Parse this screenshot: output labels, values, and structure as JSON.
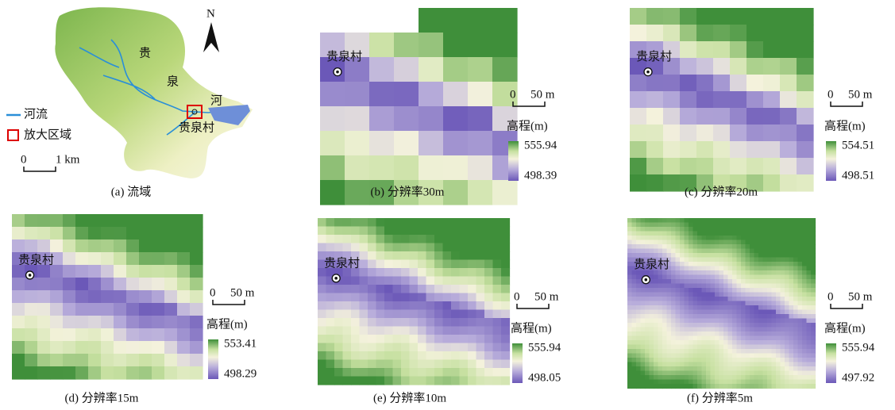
{
  "watershed": {
    "caption": "(a) 流域",
    "north": "N",
    "river_chars": [
      "贵",
      "泉",
      "河"
    ],
    "village": "贵泉村",
    "legend": [
      "河流",
      "放大区域"
    ],
    "scale": [
      "0",
      "1 km"
    ]
  },
  "zooms": [
    {
      "caption": "(b) 分辨率30m",
      "village": "贵泉村",
      "scale": [
        "0",
        "50 m"
      ],
      "legend_title": "高程(m)",
      "max": 555.94,
      "min": 498.39
    },
    {
      "caption": "(c) 分辨率20m",
      "village": "贵泉村",
      "scale": [
        "0",
        "50 m"
      ],
      "legend_title": "高程(m)",
      "max": 554.51,
      "min": 498.51
    },
    {
      "caption": "(d) 分辨率15m",
      "village": "贵泉村",
      "scale": [
        "0",
        "50 m"
      ],
      "legend_title": "高程(m)",
      "max": 553.41,
      "min": 498.29
    },
    {
      "caption": "(e) 分辨率10m",
      "village": "贵泉村",
      "scale": [
        "0",
        "50 m"
      ],
      "legend_title": "高程(m)",
      "max": 555.94,
      "min": 498.05
    },
    {
      "caption": "(f) 分辨率5m",
      "village": "贵泉村",
      "scale": [
        "0",
        "50 m"
      ],
      "legend_title": "高程(m)",
      "max": 555.94,
      "min": 497.92
    }
  ]
}
